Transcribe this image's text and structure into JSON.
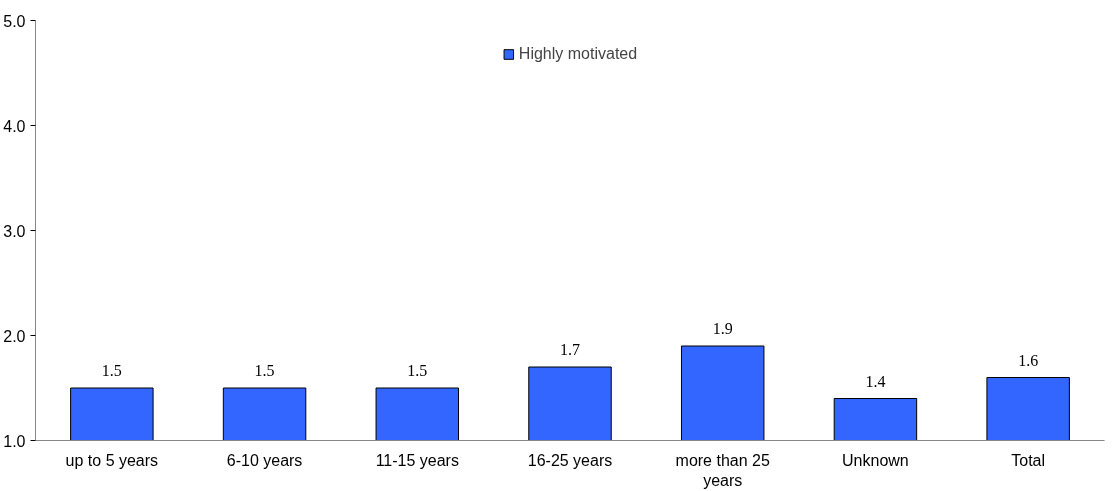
{
  "chart_data": {
    "type": "bar",
    "categories": [
      "up to 5 years",
      "6-10 years",
      "11-15 years",
      "16-25 years",
      "more than 25 years",
      "Unknown",
      "Total"
    ],
    "series": [
      {
        "name": "Highly motivated",
        "color": "#3366ff",
        "values": [
          1.5,
          1.5,
          1.5,
          1.7,
          1.9,
          1.4,
          1.6
        ]
      }
    ],
    "ylim": [
      1,
      5
    ],
    "yticks": [
      {
        "value": 1,
        "label": "1.0"
      },
      {
        "value": 2,
        "label": "2.0"
      },
      {
        "value": 3,
        "label": "3.0"
      },
      {
        "value": 4,
        "label": "4.0"
      },
      {
        "value": 5,
        "label": "5.0"
      }
    ],
    "data_labels": true,
    "grid": false,
    "legend": "top"
  }
}
